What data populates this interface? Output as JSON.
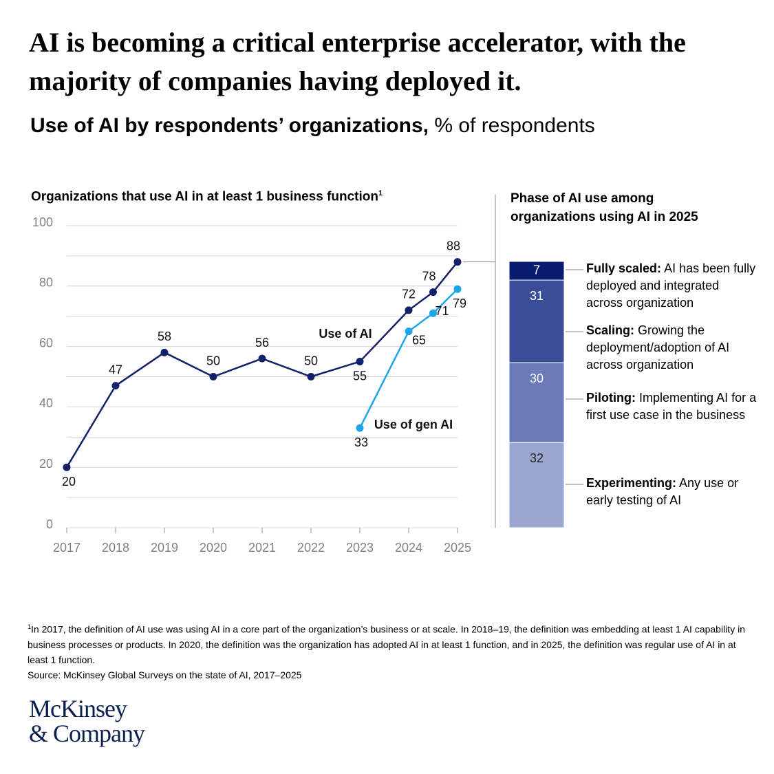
{
  "header": {
    "title": "AI is becoming a critical enterprise accelerator, with the majority of companies having deployed it.",
    "subtitle_bold": "Use of AI by respondents’ organizations,",
    "subtitle_unit": "% of respondents"
  },
  "chart_data": [
    {
      "type": "line",
      "title": "Organizations that use AI in at least 1 business function",
      "title_note": "1",
      "x": [
        2017,
        2018,
        2019,
        2020,
        2021,
        2022,
        2023,
        2024,
        2024.5,
        2025
      ],
      "series": [
        {
          "name": "Use of AI",
          "color": "#13216a",
          "values": [
            20,
            47,
            58,
            50,
            56,
            50,
            55,
            72,
            78,
            88
          ]
        },
        {
          "name": "Use of gen AI",
          "color": "#1ea6ea",
          "values": [
            null,
            null,
            null,
            null,
            null,
            null,
            33,
            65,
            71,
            79
          ]
        }
      ],
      "xlim": [
        2017,
        2025
      ],
      "xticks": [
        2017,
        2018,
        2019,
        2020,
        2021,
        2022,
        2023,
        2024,
        2025
      ],
      "ylim": [
        0,
        100
      ],
      "yticks": [
        0,
        20,
        40,
        60,
        80,
        100
      ],
      "ygrid": [
        0,
        10,
        20,
        30,
        40,
        50,
        60,
        70,
        80,
        90,
        100
      ],
      "grid": true
    },
    {
      "type": "bar",
      "stacked": true,
      "title": "Phase of AI use among organizations using AI in 2025",
      "ylim": [
        0,
        100
      ],
      "series": [
        {
          "name": "Experimenting:",
          "description": "Any use or early testing of AI",
          "color": "#9ba6d1",
          "values": [
            32
          ]
        },
        {
          "name": "Piloting:",
          "description": "Implementing AI for a first use case in the business",
          "color": "#6c7bb8",
          "values": [
            30
          ]
        },
        {
          "name": "Scaling:",
          "description": "Growing the deployment/adoption of AI across organization",
          "color": "#3c4d98",
          "values": [
            31
          ]
        },
        {
          "name": "Fully scaled:",
          "description": "AI has been fully deployed and integrated across organization",
          "color": "#0a1c6e",
          "values": [
            7
          ]
        }
      ]
    }
  ],
  "footer": {
    "note_mark": "1",
    "note": "In 2017, the definition of AI use was using AI in a core part of the organization’s business or at scale. In 2018–19, the definition was embedding at least 1 AI capability in business processes or products. In 2020, the definition was the organization has adopted AI in at least 1 function, and in 2025, the definition was regular use of AI in at least 1 function.",
    "source": "Source: McKinsey Global Surveys on the state of AI, 2017–2025",
    "logo_line1": "McKinsey",
    "logo_line2": "& Company"
  }
}
